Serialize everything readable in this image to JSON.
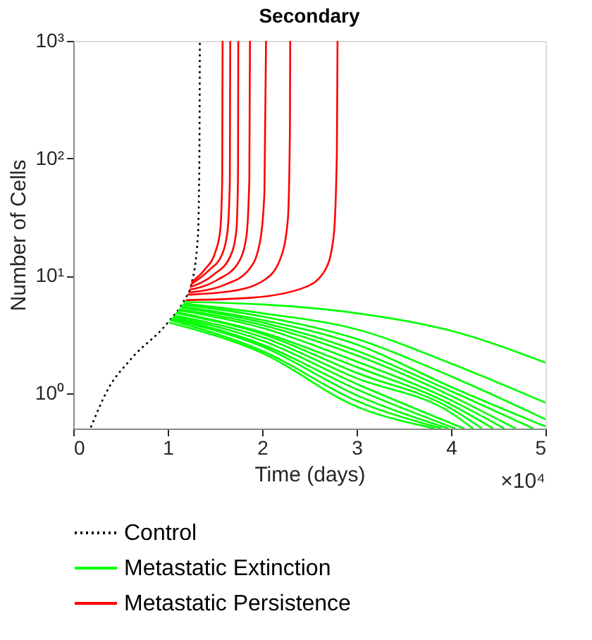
{
  "chart_data": {
    "type": "line",
    "title": "Secondary",
    "xlabel": "Time (days)",
    "ylabel": "Number of Cells",
    "log": "y",
    "grid": false,
    "legend": "bottom",
    "xlim": [
      0,
      5
    ],
    "xticks": [
      0,
      1,
      2,
      3,
      4,
      5
    ],
    "ylim": [
      0.5,
      1000
    ],
    "yticks": [
      {
        "value": 1,
        "label": "10⁰"
      },
      {
        "value": 10,
        "label": "10¹"
      },
      {
        "value": 100,
        "label": "10²"
      },
      {
        "value": 1000,
        "label": "10³"
      }
    ],
    "annotations": [
      "×10⁴"
    ],
    "series": [
      {
        "name": "Control",
        "color": "#000000",
        "line_style": "dotted",
        "x": [
          0.185,
          0.37,
          0.61,
          0.99,
          1.18,
          1.25,
          1.32,
          1.335,
          1.34
        ],
        "values": [
          0.51,
          1.09,
          1.95,
          3.9,
          6.3,
          8.4,
          22,
          100,
          1000
        ]
      },
      {
        "name": "Metastatic Extinction",
        "color": "#00ff00",
        "line_style": "solid",
        "x": [
          1.179,
          2.0,
          3.0,
          4.0,
          5.0
        ],
        "values": [
          6.0,
          5.7,
          4.8,
          3.4,
          1.82
        ]
      },
      {
        "color": "#00ff00",
        "line_style": "solid",
        "x": [
          1.167,
          2.0,
          3.0,
          4.0,
          5.0
        ],
        "values": [
          5.8,
          4.8,
          3.5,
          1.79,
          0.83
        ]
      },
      {
        "color": "#00ff00",
        "line_style": "solid",
        "x": [
          1.155,
          2.0,
          3.0,
          4.0,
          5.0
        ],
        "values": [
          5.7,
          4.5,
          2.9,
          1.39,
          0.6
        ]
      },
      {
        "color": "#00ff00",
        "line_style": "solid",
        "x": [
          1.143,
          2.0,
          3.0,
          4.0,
          5.0
        ],
        "values": [
          5.5,
          4.2,
          2.6,
          1.13,
          0.52
        ]
      },
      {
        "color": "#00ff00",
        "line_style": "solid",
        "x": [
          1.132,
          2.0,
          3.0,
          4.0,
          4.872
        ],
        "values": [
          5.4,
          4.0,
          2.3,
          1.04,
          0.5
        ]
      },
      {
        "color": "#00ff00",
        "line_style": "solid",
        "x": [
          1.12,
          2.0,
          3.0,
          4.0,
          4.683
        ],
        "values": [
          5.2,
          3.8,
          2.1,
          0.95,
          0.5
        ]
      },
      {
        "color": "#00ff00",
        "line_style": "solid",
        "x": [
          1.108,
          2.0,
          3.0,
          4.0,
          4.564
        ],
        "values": [
          5.1,
          3.6,
          1.86,
          0.87,
          0.5
        ]
      },
      {
        "color": "#00ff00",
        "line_style": "solid",
        "x": [
          1.096,
          2.0,
          3.0,
          4.0,
          4.446
        ],
        "values": [
          4.9,
          3.3,
          1.67,
          0.8,
          0.5
        ]
      },
      {
        "color": "#00ff00",
        "line_style": "solid",
        "x": [
          1.084,
          2.0,
          3.0,
          4.0,
          4.328
        ],
        "values": [
          4.8,
          3.2,
          1.49,
          0.74,
          0.5
        ]
      },
      {
        "color": "#00ff00",
        "line_style": "solid",
        "x": [
          1.072,
          2.0,
          3.0,
          4.0,
          4.233
        ],
        "values": [
          4.6,
          3.0,
          1.34,
          0.68,
          0.5
        ]
      },
      {
        "color": "#00ff00",
        "line_style": "solid",
        "x": [
          1.06,
          2.0,
          3.0,
          4.138
        ],
        "values": [
          4.5,
          2.8,
          1.2,
          0.5
        ]
      },
      {
        "color": "#00ff00",
        "line_style": "solid",
        "x": [
          1.048,
          2.0,
          3.0,
          4.044
        ],
        "values": [
          4.4,
          2.6,
          1.08,
          0.5
        ]
      },
      {
        "color": "#00ff00",
        "line_style": "solid",
        "x": [
          1.037,
          2.0,
          3.0,
          3.973
        ],
        "values": [
          4.3,
          2.5,
          0.96,
          0.5
        ]
      },
      {
        "color": "#00ff00",
        "line_style": "solid",
        "x": [
          1.025,
          2.0,
          3.0,
          3.902
        ],
        "values": [
          4.2,
          2.3,
          0.86,
          0.5
        ]
      },
      {
        "color": "#00ff00",
        "line_style": "solid",
        "x": [
          1.013,
          2.0,
          3.0,
          3.831
        ],
        "values": [
          4.0,
          2.2,
          0.77,
          0.5
        ]
      },
      {
        "name": "Metastatic Persistence",
        "color": "#ff0000",
        "line_style": "solid",
        "x": [
          1.25,
          1.392,
          1.506,
          1.555,
          1.577,
          1.581
        ],
        "values": [
          8.8,
          11.3,
          16.1,
          24,
          66,
          1000
        ]
      },
      {
        "color": "#ff0000",
        "line_style": "solid",
        "x": [
          1.243,
          1.435,
          1.577,
          1.633,
          1.658,
          1.662
        ],
        "values": [
          8.4,
          11.1,
          15.3,
          24,
          66,
          1000
        ]
      },
      {
        "color": "#ff0000",
        "line_style": "solid",
        "x": [
          1.236,
          1.492,
          1.662,
          1.726,
          1.744,
          1.747
        ],
        "values": [
          8.0,
          10.3,
          14.6,
          24,
          66,
          1000
        ]
      },
      {
        "color": "#ff0000",
        "line_style": "solid",
        "x": [
          1.229,
          1.534,
          1.747,
          1.832,
          1.864,
          1.871
        ],
        "values": [
          7.6,
          9.3,
          12.9,
          21.3,
          66,
          1000
        ]
      },
      {
        "color": "#ff0000",
        "line_style": "solid",
        "x": [
          1.222,
          1.605,
          1.861,
          1.974,
          2.024,
          2.041
        ],
        "values": [
          7.2,
          8.4,
          11.3,
          18.8,
          51,
          1000
        ]
      },
      {
        "color": "#ff0000",
        "line_style": "solid",
        "x": [
          1.207,
          1.676,
          2.031,
          2.202,
          2.273,
          2.294,
          2.297
        ],
        "values": [
          6.9,
          7.4,
          9.3,
          14.6,
          31,
          181,
          1000
        ]
      },
      {
        "color": "#ff0000",
        "line_style": "solid",
        "x": [
          1.193,
          1.889,
          2.457,
          2.67,
          2.756,
          2.791,
          2.798
        ],
        "values": [
          6.2,
          6.5,
          8.0,
          11.3,
          21.3,
          109,
          1000
        ]
      }
    ]
  }
}
